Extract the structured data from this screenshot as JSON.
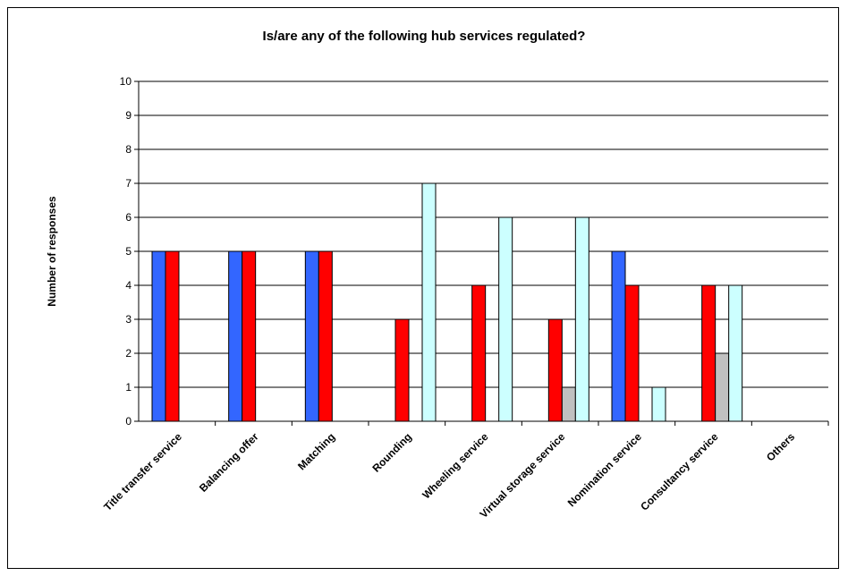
{
  "chart_data": {
    "type": "bar",
    "title": "Is/are any of the following hub services regulated?",
    "xlabel": "",
    "ylabel": "Number of responses",
    "ylim": [
      0,
      10
    ],
    "yticks": [
      "0",
      "1",
      "2",
      "3",
      "4",
      "5",
      "6",
      "7",
      "8",
      "9",
      "10"
    ],
    "grid": true,
    "legend": "none",
    "categories": [
      "Title transfer service",
      "Balancing offer",
      "Matching",
      "Rounding",
      "Wheeling service",
      "Virtual storage service",
      "Nomination service",
      "Consultancy service",
      "Others"
    ],
    "series": [
      {
        "color": "#3366ff",
        "values": [
          5,
          5,
          5,
          0,
          0,
          0,
          5,
          0,
          0
        ]
      },
      {
        "color": "#ff0000",
        "values": [
          5,
          5,
          5,
          3,
          4,
          3,
          4,
          4,
          0
        ]
      },
      {
        "color": "#c0c0c0",
        "values": [
          0,
          0,
          0,
          0,
          0,
          1,
          0,
          2,
          0
        ]
      },
      {
        "color": "#ccffff",
        "values": [
          0,
          0,
          0,
          7,
          6,
          6,
          1,
          4,
          0
        ]
      }
    ]
  }
}
